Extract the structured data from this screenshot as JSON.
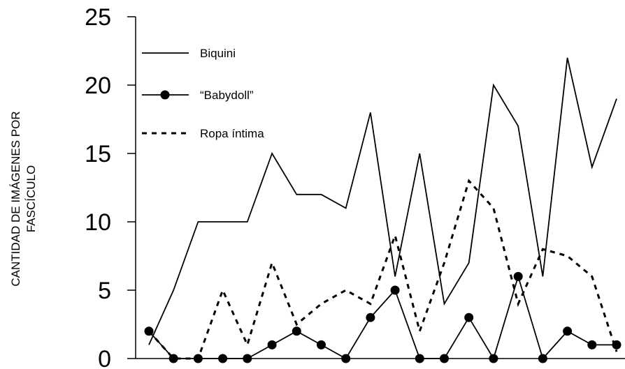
{
  "chart_data": {
    "type": "line",
    "title": "",
    "xlabel": "",
    "ylabel_lines": [
      "CANTIDAD DE IMÁGENES POR",
      "FASCÍCULO"
    ],
    "ylim": [
      0,
      25
    ],
    "y_ticks": [
      "0",
      "5",
      "10",
      "15",
      "20",
      "25"
    ],
    "x": [
      1,
      2,
      3,
      4,
      5,
      6,
      7,
      8,
      9,
      10,
      11,
      12,
      13,
      14,
      15,
      16,
      17,
      18,
      19,
      20
    ],
    "legend_position": "top-left",
    "grid": false,
    "series": [
      {
        "name": "Biquini",
        "style": "solid",
        "marker": "none",
        "values": [
          1,
          5,
          10,
          10,
          10,
          15,
          12,
          12,
          11,
          18,
          6,
          15,
          4,
          7,
          20,
          17,
          6,
          22,
          14,
          19
        ]
      },
      {
        "name": "“Babydoll”",
        "style": "solid",
        "marker": "circle",
        "values": [
          2,
          0,
          0,
          0,
          0,
          1,
          2,
          1,
          0,
          3,
          5,
          0,
          0,
          3,
          0,
          6,
          0,
          2,
          1,
          1
        ]
      },
      {
        "name": "Ropa íntima",
        "style": "dashed",
        "marker": "none",
        "values": [
          2,
          0,
          0,
          5,
          1,
          7,
          2.5,
          4,
          5,
          4,
          9,
          2,
          7,
          13,
          11,
          4,
          8,
          7.5,
          6,
          0.5
        ]
      }
    ],
    "colors": {
      "line": "#000000",
      "background": "#ffffff"
    }
  }
}
